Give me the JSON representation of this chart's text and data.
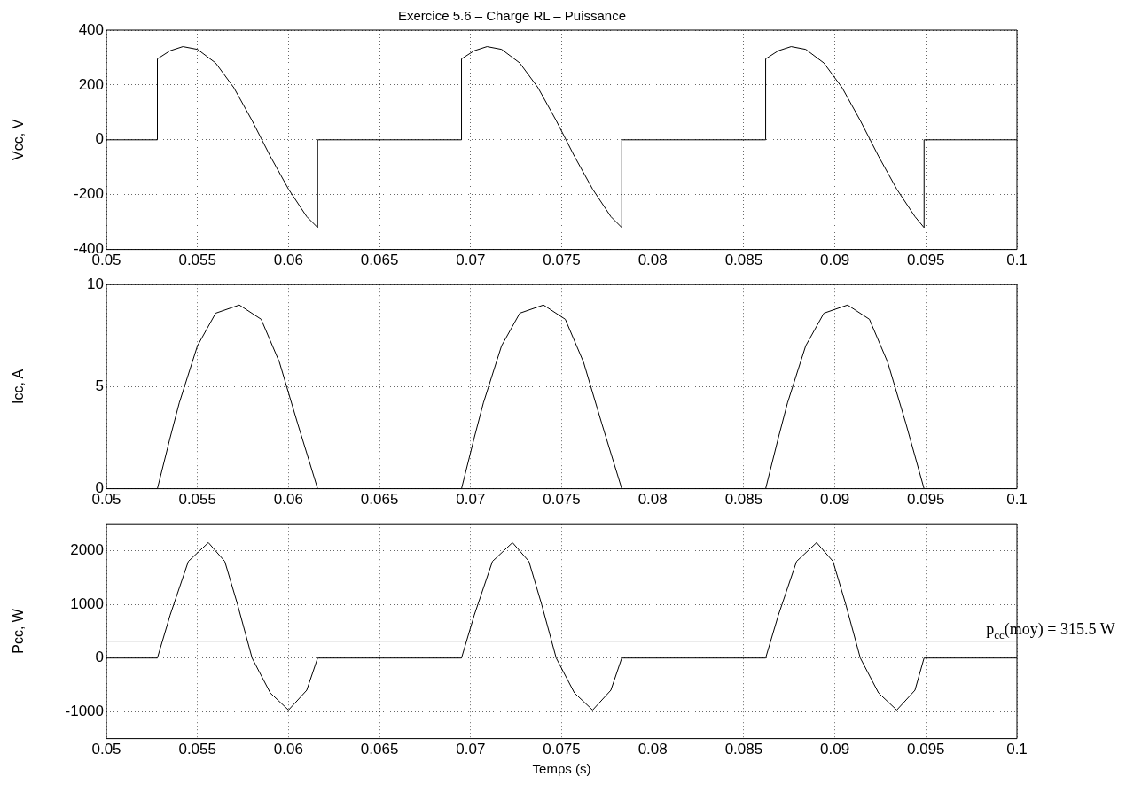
{
  "chart_data": [
    {
      "type": "line",
      "title": "Exercice 5.6 – Charge RL – Puissance",
      "ylabel": "Vcc, V",
      "xlim": [
        0.05,
        0.1
      ],
      "xticks": [
        0.05,
        0.055,
        0.06,
        0.065,
        0.07,
        0.075,
        0.08,
        0.085,
        0.09,
        0.095,
        0.1
      ],
      "ylim": [
        -400,
        400
      ],
      "yticks": [
        -400,
        -200,
        0,
        200,
        400
      ],
      "grid": true,
      "marker": "none",
      "line_style": "solid",
      "series": [
        {
          "color": "#000000",
          "x": [
            0.05,
            0.0528,
            0.0528,
            0.0535,
            0.0542,
            0.055,
            0.056,
            0.057,
            0.058,
            0.059,
            0.06,
            0.061,
            0.0616,
            0.0616,
            0.0695,
            0.0695,
            0.0702,
            0.0709,
            0.0717,
            0.0727,
            0.0737,
            0.0747,
            0.0757,
            0.0767,
            0.0777,
            0.0783,
            0.0783,
            0.0862,
            0.0862,
            0.0869,
            0.0876,
            0.0884,
            0.0894,
            0.0904,
            0.0914,
            0.0924,
            0.0934,
            0.0944,
            0.0949,
            0.0949,
            0.1
          ],
          "values": [
            0,
            0,
            295,
            325,
            340,
            330,
            280,
            190,
            70,
            -60,
            -180,
            -280,
            -320,
            0,
            0,
            295,
            325,
            340,
            330,
            280,
            190,
            70,
            -60,
            -180,
            -280,
            -320,
            0,
            0,
            295,
            325,
            340,
            330,
            280,
            190,
            70,
            -60,
            -180,
            -280,
            -320,
            0,
            0
          ]
        }
      ]
    },
    {
      "type": "line",
      "ylabel": "Icc, A",
      "xlim": [
        0.05,
        0.1
      ],
      "xticks": [
        0.05,
        0.055,
        0.06,
        0.065,
        0.07,
        0.075,
        0.08,
        0.085,
        0.09,
        0.095,
        0.1
      ],
      "ylim": [
        0,
        10
      ],
      "yticks": [
        0,
        5,
        10
      ],
      "grid": true,
      "marker": "none",
      "line_style": "solid",
      "series": [
        {
          "color": "#000000",
          "x": [
            0.05,
            0.0528,
            0.0535,
            0.054,
            0.055,
            0.056,
            0.0573,
            0.0585,
            0.0595,
            0.0605,
            0.0616,
            0.0695,
            0.0702,
            0.0707,
            0.0717,
            0.0727,
            0.074,
            0.0752,
            0.0762,
            0.0772,
            0.0783,
            0.0862,
            0.0869,
            0.0874,
            0.0884,
            0.0894,
            0.0907,
            0.0919,
            0.0929,
            0.0939,
            0.0949,
            0.1
          ],
          "values": [
            0,
            0,
            2.5,
            4.2,
            7,
            8.6,
            9,
            8.3,
            6.2,
            3.2,
            0,
            0,
            2.5,
            4.2,
            7,
            8.6,
            9,
            8.3,
            6.2,
            3.2,
            0,
            0,
            2.5,
            4.2,
            7,
            8.6,
            9,
            8.3,
            6.2,
            3.2,
            0,
            0
          ]
        }
      ]
    },
    {
      "type": "line",
      "ylabel": "Pcc, W",
      "xlabel": "Temps (s)",
      "xlim": [
        0.05,
        0.1
      ],
      "xticks": [
        0.05,
        0.055,
        0.06,
        0.065,
        0.07,
        0.075,
        0.08,
        0.085,
        0.09,
        0.095,
        0.1
      ],
      "ylim": [
        -1500,
        2500
      ],
      "yticks": [
        -1000,
        0,
        1000,
        2000
      ],
      "grid": true,
      "marker": "none",
      "line_style": "solid",
      "ref_lines": [
        {
          "axis": "y",
          "value": 315.5,
          "label": "p$_{cc}$(moy) = 315.5 W",
          "color": "#000000"
        }
      ],
      "series": [
        {
          "color": "#000000",
          "x": [
            0.05,
            0.0528,
            0.0535,
            0.0545,
            0.0556,
            0.0565,
            0.0572,
            0.058,
            0.059,
            0.06,
            0.061,
            0.0616,
            0.0695,
            0.0702,
            0.0712,
            0.0723,
            0.0732,
            0.0739,
            0.0747,
            0.0757,
            0.0767,
            0.0777,
            0.0783,
            0.0862,
            0.0869,
            0.0879,
            0.089,
            0.0899,
            0.0906,
            0.0914,
            0.0924,
            0.0934,
            0.0944,
            0.0949,
            0.1
          ],
          "values": [
            0,
            0,
            800,
            1800,
            2150,
            1800,
            1000,
            0,
            -650,
            -970,
            -600,
            0,
            0,
            800,
            1800,
            2150,
            1800,
            1000,
            0,
            -650,
            -970,
            -600,
            0,
            0,
            800,
            1800,
            2150,
            1800,
            1000,
            0,
            -650,
            -970,
            -600,
            0,
            0
          ]
        }
      ]
    }
  ]
}
